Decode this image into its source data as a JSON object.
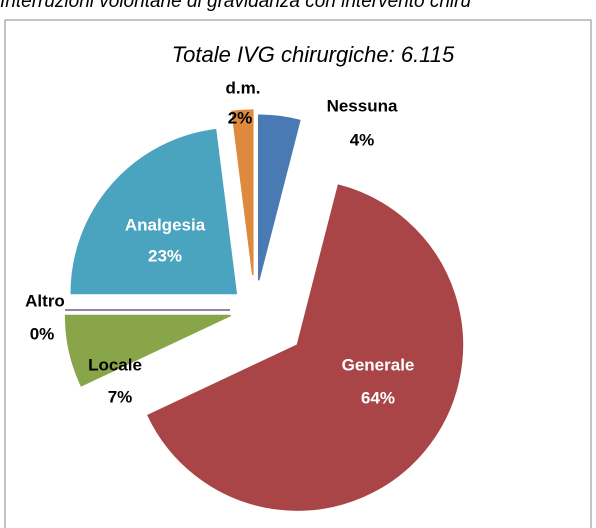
{
  "header": {
    "title": "Interruzioni volontarie di gravidanza con intervento chiru"
  },
  "chart_data": {
    "type": "pie",
    "title": "Totale IVG chirurgiche: 6.115",
    "categories": [
      "Nessuna",
      "Generale",
      "Locale",
      "Altro",
      "Analgesia",
      "d.m."
    ],
    "values": [
      4,
      64,
      7,
      0,
      23,
      2
    ],
    "value_labels": [
      "4%",
      "64%",
      "7%",
      "0%",
      "23%",
      "2%"
    ],
    "colors": [
      "#4a7ab4",
      "#a94546",
      "#89a54a",
      "#71588f",
      "#4aa3bf",
      "#dd8a3e"
    ]
  }
}
